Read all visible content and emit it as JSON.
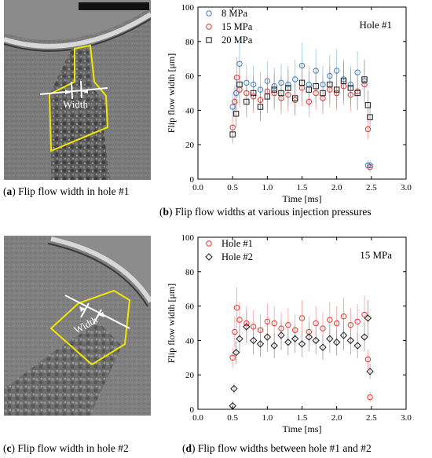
{
  "panels": {
    "a": {
      "caption_letter": "a",
      "caption_text": " Flip flow width in hole #1",
      "annotation": "Width"
    },
    "c": {
      "caption_letter": "c",
      "caption_text": " Flip flow width in hole #2",
      "annotation": "Width"
    },
    "b": {
      "caption_letter": "b",
      "caption_text": " Flip flow widths at various injection pressures"
    },
    "d": {
      "caption_letter": "d",
      "caption_text": " Flip flow widths between hole #1 and #2"
    }
  },
  "colors": {
    "red": "#e8332e",
    "blue": "#3a7fc1",
    "black": "#1a1a1a",
    "gray_err": "#9a9a9a",
    "light_blue_err": "#9cc3e6",
    "light_red_err": "#f2a09c",
    "xray_bg": "#7d7d7d",
    "outline_yellow": "#f2e600"
  },
  "chart_data": [
    {
      "id": "b",
      "type": "scatter",
      "title": "",
      "annotation": "Hole #1",
      "xlabel": "Time [ms]",
      "ylabel": "Flip flow width [μm]",
      "xlim": [
        0.0,
        3.0
      ],
      "ylim": [
        0,
        100
      ],
      "xticks": [
        "0.0",
        "0.5",
        "1.0",
        "1.5",
        "2.0",
        "2.5",
        "3.0"
      ],
      "yticks": [
        "0",
        "20",
        "40",
        "60",
        "80",
        "100"
      ],
      "legend_position": "top-left",
      "series": [
        {
          "name": "8 MPa",
          "marker": "circle",
          "color": "#3a7fc1",
          "x": [
            0.5,
            0.55,
            0.6,
            0.7,
            0.8,
            0.9,
            1.0,
            1.1,
            1.2,
            1.3,
            1.4,
            1.5,
            1.6,
            1.7,
            1.8,
            1.9,
            2.0,
            2.1,
            2.2,
            2.3,
            2.4,
            2.45,
            2.48
          ],
          "y": [
            42,
            50,
            67,
            56,
            55,
            52,
            57,
            54,
            56,
            55,
            58,
            66,
            55,
            63,
            55,
            60,
            63,
            58,
            55,
            62,
            57,
            8,
            8
          ]
        },
        {
          "name": "15 MPa",
          "marker": "circle",
          "color": "#e8332e",
          "x": [
            0.5,
            0.53,
            0.56,
            0.6,
            0.7,
            0.8,
            0.9,
            1.0,
            1.1,
            1.2,
            1.3,
            1.4,
            1.5,
            1.6,
            1.7,
            1.8,
            1.9,
            2.0,
            2.1,
            2.2,
            2.3,
            2.4,
            2.45,
            2.48
          ],
          "y": [
            30,
            45,
            59,
            52,
            50,
            48,
            46,
            51,
            50,
            47,
            49,
            46,
            53,
            45,
            50,
            47,
            52,
            50,
            54,
            49,
            51,
            55,
            29,
            7
          ]
        },
        {
          "name": "20 MPa",
          "marker": "square",
          "color": "#1a1a1a",
          "x": [
            0.5,
            0.55,
            0.6,
            0.7,
            0.8,
            0.9,
            1.0,
            1.1,
            1.2,
            1.3,
            1.4,
            1.5,
            1.6,
            1.7,
            1.8,
            1.9,
            2.0,
            2.1,
            2.2,
            2.3,
            2.4,
            2.45,
            2.48
          ],
          "y": [
            26,
            38,
            55,
            45,
            50,
            42,
            48,
            52,
            50,
            53,
            47,
            56,
            52,
            54,
            50,
            55,
            52,
            57,
            53,
            50,
            58,
            43,
            36
          ]
        }
      ]
    },
    {
      "id": "d",
      "type": "scatter",
      "title": "",
      "annotation": "15 MPa",
      "xlabel": "Time [ms]",
      "ylabel": "Flip flow width [μm]",
      "xlim": [
        0.0,
        3.0
      ],
      "ylim": [
        0,
        100
      ],
      "xticks": [
        "0.0",
        "0.5",
        "1.0",
        "1.5",
        "2.0",
        "2.5",
        "3.0"
      ],
      "yticks": [
        "0",
        "20",
        "40",
        "60",
        "80",
        "100"
      ],
      "legend_position": "top-left",
      "series": [
        {
          "name": "Hole #1",
          "marker": "circle",
          "color": "#e8332e",
          "x": [
            0.5,
            0.53,
            0.56,
            0.6,
            0.7,
            0.8,
            0.9,
            1.0,
            1.1,
            1.2,
            1.3,
            1.4,
            1.5,
            1.6,
            1.7,
            1.8,
            1.9,
            2.0,
            2.1,
            2.2,
            2.3,
            2.4,
            2.45,
            2.48
          ],
          "y": [
            30,
            45,
            59,
            52,
            50,
            48,
            46,
            51,
            50,
            47,
            49,
            46,
            53,
            45,
            50,
            47,
            52,
            50,
            54,
            49,
            51,
            55,
            29,
            7
          ]
        },
        {
          "name": "Hole #2",
          "marker": "diamond",
          "color": "#1a1a1a",
          "x": [
            0.5,
            0.52,
            0.55,
            0.6,
            0.7,
            0.8,
            0.9,
            1.0,
            1.1,
            1.2,
            1.3,
            1.4,
            1.5,
            1.6,
            1.7,
            1.8,
            1.9,
            2.0,
            2.1,
            2.2,
            2.3,
            2.4,
            2.45,
            2.48
          ],
          "y": [
            2,
            12,
            33,
            41,
            48,
            40,
            38,
            42,
            37,
            43,
            39,
            41,
            38,
            42,
            40,
            36,
            41,
            39,
            43,
            40,
            37,
            42,
            53,
            22
          ]
        }
      ]
    }
  ]
}
